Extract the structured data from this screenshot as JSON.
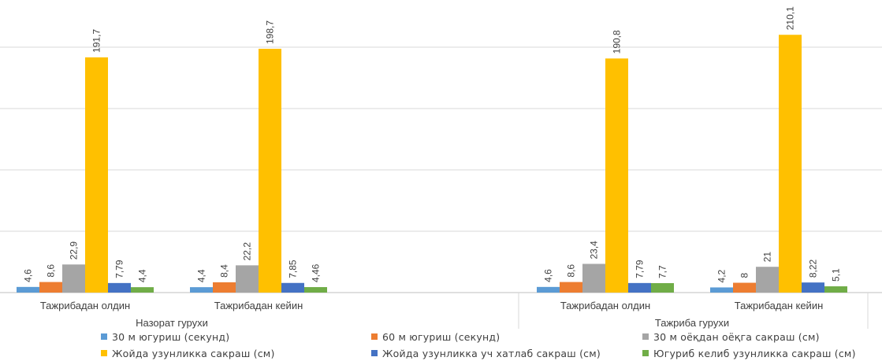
{
  "chart_data": {
    "type": "bar",
    "groups": [
      {
        "name": "Назорат гурухи",
        "categories": [
          "Тажрибадан олдин",
          "Тажрибадан кейин"
        ]
      },
      {
        "name": "Тажриба гурухи",
        "categories": [
          "Тажрибадан олдин",
          "Тажрибадан кейин"
        ]
      }
    ],
    "series": [
      {
        "name": "30 м  югуриш (секунд)",
        "color": "#5B9BD5",
        "values": [
          4.6,
          4.4,
          4.6,
          4.2
        ],
        "labels": [
          "4,6",
          "4,4",
          "4,6",
          "4,2"
        ]
      },
      {
        "name": "60 м югуриш (секунд)",
        "color": "#ED7D31",
        "values": [
          8.6,
          8.4,
          8.6,
          8
        ],
        "labels": [
          "8,6",
          "8,4",
          "8,6",
          "8"
        ]
      },
      {
        "name": "30 м оёқдан оёқга сакраш (см)",
        "color": "#A5A5A5",
        "values": [
          22.9,
          22.2,
          23.4,
          21
        ],
        "labels": [
          "22,9",
          "22,2",
          "23,4",
          "21"
        ]
      },
      {
        "name": "Жойда узунликка сакраш (см)",
        "color": "#FFC000",
        "values": [
          191.7,
          198.7,
          190.8,
          210.1
        ],
        "labels": [
          "191,7",
          "198,7",
          "190,8",
          "210,1"
        ]
      },
      {
        "name": "Жойда узунликка  уч хатлаб сакраш (см)",
        "color": "#4472C4",
        "values": [
          7.79,
          7.85,
          7.79,
          8.22
        ],
        "labels": [
          "7,79",
          "7,85",
          "7,79",
          "8,22"
        ]
      },
      {
        "name": "Югуриб келиб узунликка сакраш (см)",
        "color": "#70AD47",
        "values": [
          4.4,
          4.46,
          7.7,
          5.1
        ],
        "labels": [
          "4,4",
          "4,46",
          "7,7",
          "5,1"
        ]
      }
    ],
    "ylim": [
      0,
      215
    ],
    "grid": true,
    "legend_position": "bottom",
    "gridline_color": "#D9D9D9",
    "label_color": "#404040"
  }
}
